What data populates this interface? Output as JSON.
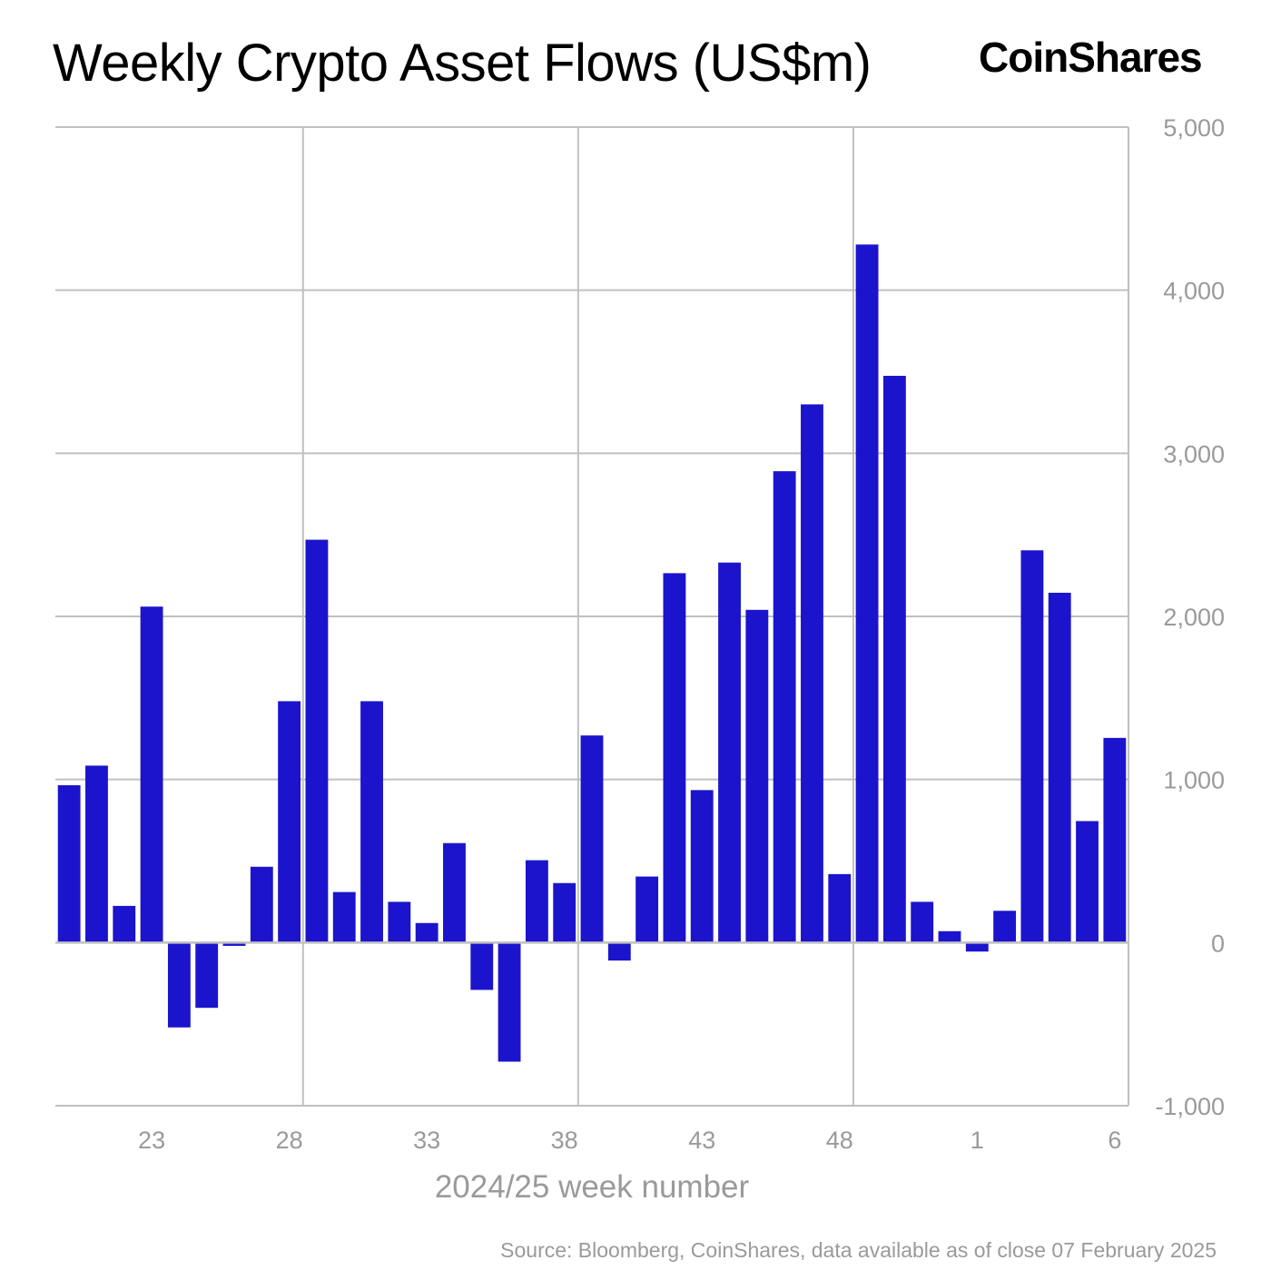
{
  "title": "Weekly Crypto Asset Flows (US$m)",
  "logo_text": "CoinShares",
  "source": "Source: Bloomberg, CoinShares, data available as of close 07 February 2025",
  "colors": {
    "bar": "#1b14cc",
    "grid": "#c0c0c0",
    "axis_text": "#9a9a9a"
  },
  "chart_data": {
    "type": "bar",
    "title": "Weekly Crypto Asset Flows (US$m)",
    "xlabel": "2024/25 week number",
    "ylabel": "",
    "y_axis_position": "right",
    "ylim": [
      -1000,
      5000
    ],
    "yticks": [
      -1000,
      0,
      1000,
      2000,
      3000,
      4000,
      5000
    ],
    "ytick_labels": [
      "-1,000",
      "0",
      "1,000",
      "2,000",
      "3,000",
      "4,000",
      "5,000"
    ],
    "categories": [
      "20",
      "21",
      "22",
      "23",
      "24",
      "25",
      "26",
      "27",
      "28",
      "29",
      "30",
      "31",
      "32",
      "33",
      "34",
      "35",
      "36",
      "37",
      "38",
      "39",
      "40",
      "41",
      "42",
      "43",
      "44",
      "45",
      "46",
      "47",
      "48",
      "49",
      "50",
      "51",
      "52",
      "1",
      "2",
      "3",
      "4",
      "5",
      "6"
    ],
    "xtick_labels": [
      "23",
      "28",
      "33",
      "38",
      "43",
      "48",
      "1",
      "6"
    ],
    "values": [
      965,
      1085,
      225,
      2060,
      -520,
      -400,
      -20,
      465,
      1480,
      2470,
      310,
      1480,
      250,
      120,
      610,
      -290,
      -730,
      505,
      365,
      1270,
      -110,
      405,
      2265,
      935,
      2330,
      2040,
      2890,
      3300,
      420,
      4280,
      3475,
      250,
      70,
      -55,
      195,
      2405,
      2145,
      745,
      1255
    ],
    "grid": true
  }
}
